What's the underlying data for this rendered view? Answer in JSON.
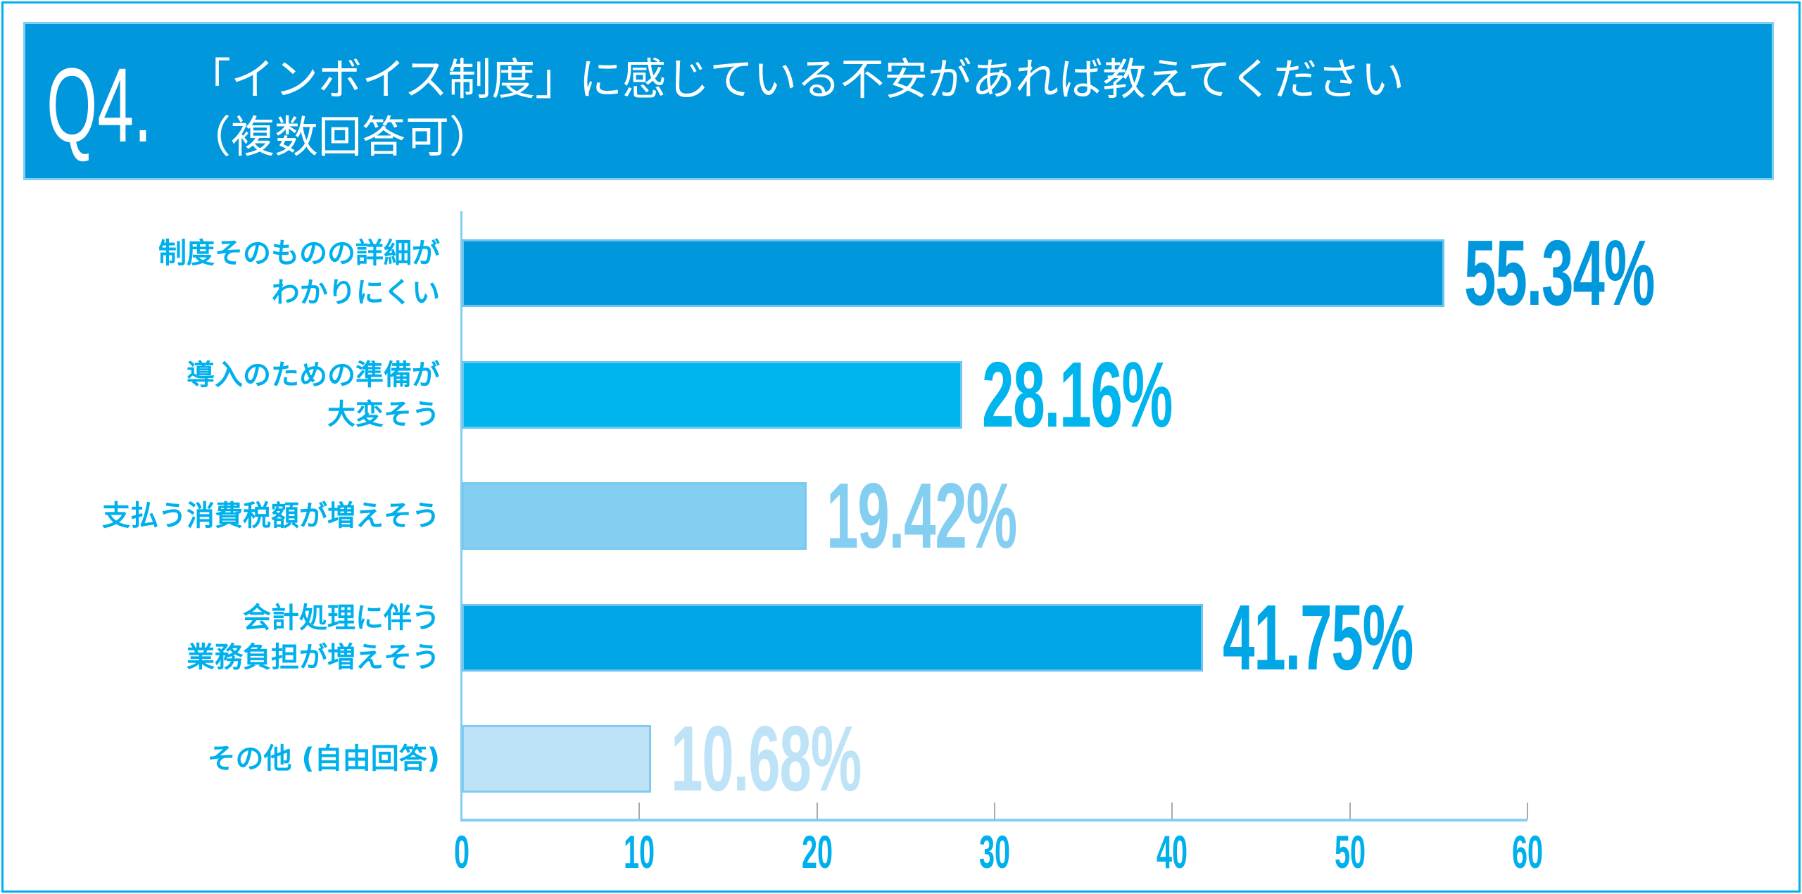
{
  "header": {
    "qnum": "Q4.",
    "title_line1": "「インボイス制度」に感じている不安があれば教えてください",
    "title_line2": "（複数回答可）"
  },
  "chart_data": {
    "type": "bar",
    "orientation": "horizontal",
    "title": "「インボイス制度」に感じている不安があれば教えてください（複数回答可）",
    "categories": [
      [
        "制度そのものの詳細が",
        "わかりにくい"
      ],
      [
        "導入のための準備が",
        "大変そう"
      ],
      [
        "支払う消費税額が増えそう"
      ],
      [
        "会計処理に伴う",
        "業務負担が増えそう"
      ],
      [
        "その他 (自由回答)"
      ]
    ],
    "values": [
      55.34,
      28.16,
      19.42,
      41.75,
      10.68
    ],
    "labels": [
      "55.34%",
      "28.16%",
      "19.42%",
      "41.75%",
      "10.68%"
    ],
    "colors": [
      "#0097DD",
      "#00B4EE",
      "#84CEF2",
      "#00A6E6",
      "#BEE3F7"
    ],
    "xlim": [
      0,
      60
    ],
    "xticks": [
      "0",
      "10",
      "20",
      "30",
      "40",
      "50",
      "60"
    ],
    "xlabel": "",
    "ylabel": "",
    "grid": false
  }
}
